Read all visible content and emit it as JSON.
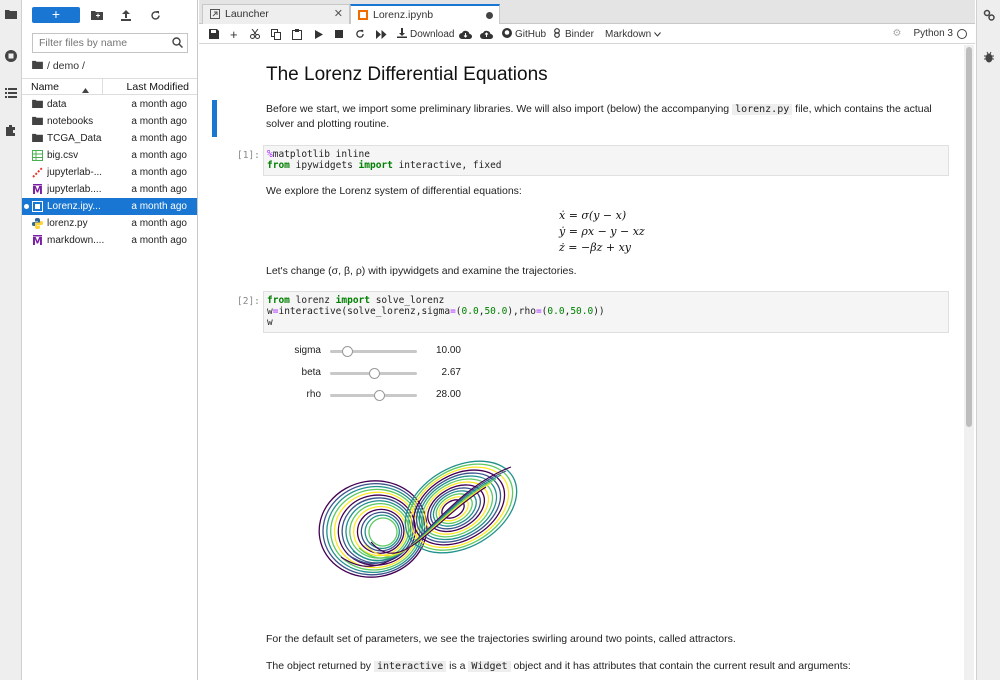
{
  "file_browser": {
    "filter_placeholder": "Filter files by name",
    "breadcrumb": "/ demo /",
    "col_name": "Name",
    "col_modified": "Last Modified",
    "files": [
      {
        "name": "data",
        "icon": "folder-icon",
        "modified": "a month ago",
        "selected": false
      },
      {
        "name": "notebooks",
        "icon": "folder-icon",
        "modified": "a month ago",
        "selected": false
      },
      {
        "name": "TCGA_Data",
        "icon": "folder-icon",
        "modified": "a month ago",
        "selected": false
      },
      {
        "name": "big.csv",
        "icon": "spreadsheet-icon",
        "modified": "a month ago",
        "selected": false
      },
      {
        "name": "jupyterlab-...",
        "icon": "pdf-icon",
        "modified": "a month ago",
        "selected": false
      },
      {
        "name": "jupyterlab....",
        "icon": "markdown-icon",
        "modified": "a month ago",
        "selected": false
      },
      {
        "name": "Lorenz.ipy...",
        "icon": "notebook-icon",
        "modified": "a month ago",
        "selected": true
      },
      {
        "name": "lorenz.py",
        "icon": "python-icon",
        "modified": "a month ago",
        "selected": false
      },
      {
        "name": "markdown....",
        "icon": "markdown-icon",
        "modified": "a month ago",
        "selected": false
      }
    ]
  },
  "tabs": [
    {
      "label": "Launcher",
      "icon": "launcher-icon",
      "active": false
    },
    {
      "label": "Lorenz.ipynb",
      "icon": "notebook-icon",
      "active": true
    }
  ],
  "toolbar": {
    "download": "Download",
    "github": "GitHub",
    "binder": "Binder",
    "cell_type": "Markdown",
    "kernel": "Python 3"
  },
  "notebook": {
    "title": "The Lorenz Differential Equations",
    "intro_1": "Before we start, we import some preliminary libraries. We will also import (below) the accompanying",
    "intro_file": "lorenz.py",
    "intro_2": "file, which contains the actual",
    "intro_3": "solver and plotting routine.",
    "cell1_prompt": "[1]:",
    "cell2_prompt": "[2]:",
    "explore": "We explore the Lorenz system of differential equations:",
    "eq1": "ẋ = σ(y − x)",
    "eq2": "ẏ = ρx − y − xz",
    "eq3": "ż = −βz + xy",
    "change": "Let's change (σ, β, ρ) with ipywidgets and examine the trajectories.",
    "sliders": [
      {
        "label": "sigma",
        "value": "10.00",
        "fraction": 0.2
      },
      {
        "label": "beta",
        "value": "2.67",
        "fraction": 0.5
      },
      {
        "label": "rho",
        "value": "28.00",
        "fraction": 0.56
      }
    ],
    "default_params": "For the default set of parameters, we see the trajectories swirling around two points, called attractors.",
    "returned_1": "The object returned by",
    "returned_code1": "interactive",
    "returned_2": "is a",
    "returned_code2": "Widget",
    "returned_3": "object and it has attributes that contain the current result and arguments:"
  },
  "colors": {
    "accent": "#1976d2",
    "trajectories": [
      "#440154",
      "#3b528b",
      "#21918c",
      "#5ec962",
      "#fde725"
    ]
  }
}
